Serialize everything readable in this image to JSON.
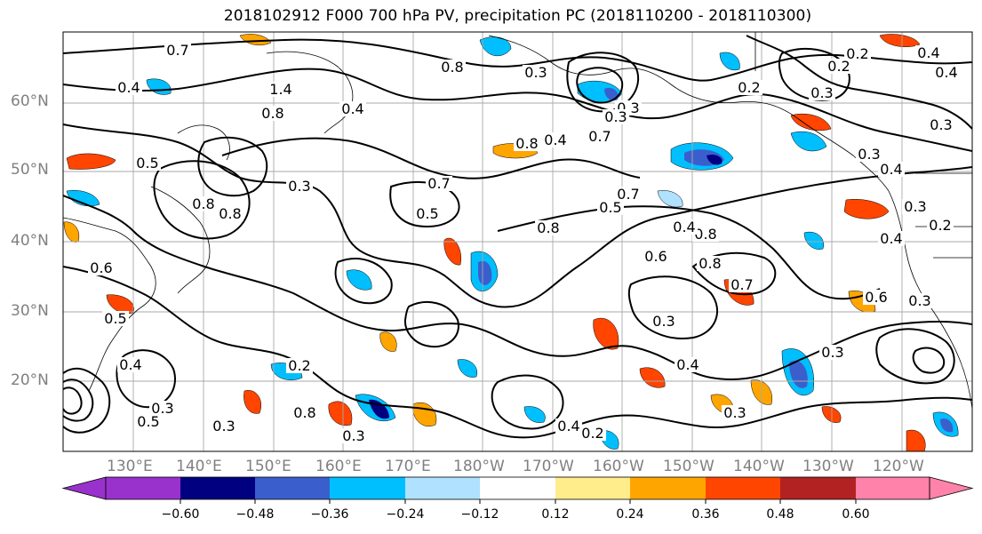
{
  "title": "2018102912 F000 700 hPa PV, precipitation PC (2018110200 - 2018110300)",
  "lat_labels": [
    "60°N",
    "50°N",
    "40°N",
    "30°N",
    "20°N"
  ],
  "lon_labels": [
    "130°E",
    "140°E",
    "150°E",
    "160°E",
    "170°E",
    "180°W",
    "170°W",
    "160°W",
    "150°W",
    "140°W",
    "130°W",
    "120°W"
  ],
  "colorbar": {
    "ticks": [
      "−0.60",
      "−0.48",
      "−0.36",
      "−0.24",
      "−0.12",
      "0.12",
      "0.24",
      "0.36",
      "0.48",
      "0.60"
    ],
    "colors": [
      "#9932CC",
      "#000080",
      "#3A5FCD",
      "#00BFFF",
      "#B0E2FF",
      "#FFFFFF",
      "#FFEC8B",
      "#FFA500",
      "#FF4500",
      "#B22222",
      "#FF82AB"
    ]
  },
  "contour_labels": [
    "0.7",
    "0.4",
    "1.4",
    "0.8",
    "0.4",
    "0.5",
    "0.8",
    "0.8",
    "0.3",
    "0.6",
    "0.5",
    "0.7",
    "0.5",
    "0.8",
    "0.3",
    "0.4",
    "0.7",
    "0.8",
    "0.7",
    "0.8",
    "0.5",
    "0.8",
    "0.6",
    "0.3",
    "0.8",
    "0.7",
    "0.4",
    "0.4",
    "0.3",
    "0.3",
    "0.6",
    "0.3",
    "0.4",
    "0.2",
    "0.3",
    "0.4",
    "0.3",
    "0.4",
    "0.2",
    "0.4",
    "0.2",
    "0.3",
    "0.3",
    "0.2",
    "0.3",
    "0.3",
    "0.2",
    "0.4",
    "0.3",
    "0.5",
    "0.3",
    "0.8",
    "0.3",
    "0.4",
    "0.2"
  ]
}
